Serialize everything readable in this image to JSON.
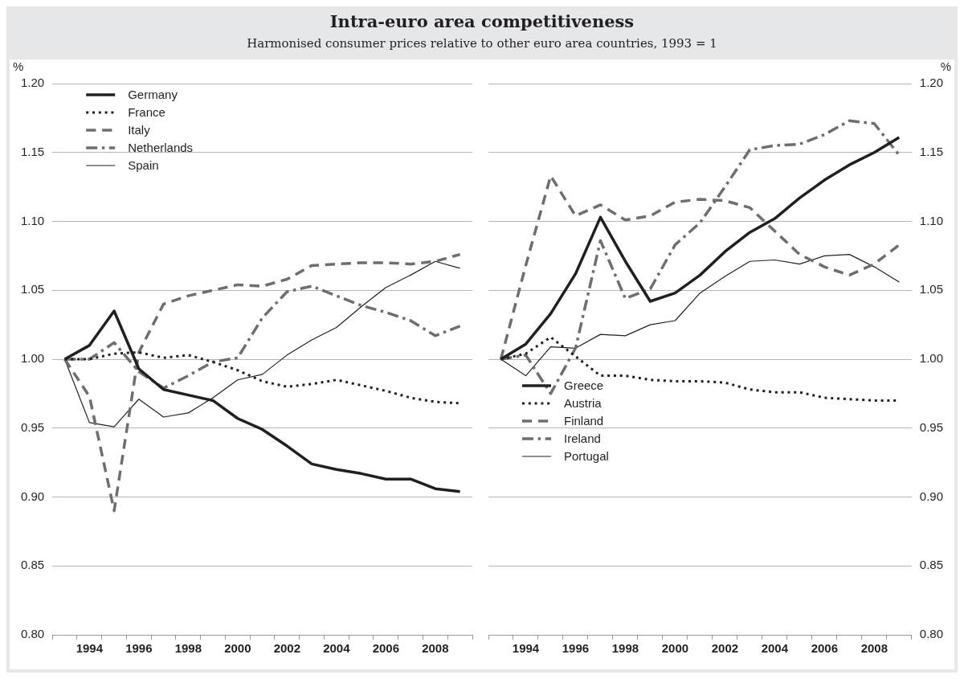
{
  "chart_data": [
    {
      "type": "line",
      "title": "Intra-euro area competitiveness",
      "subtitle": "Harmonised consumer prices relative to other euro area countries, 1993 = 1",
      "ylabel": "%",
      "x": [
        1993,
        1994,
        1995,
        1996,
        1997,
        1998,
        1999,
        2000,
        2001,
        2002,
        2003,
        2004,
        2005,
        2006,
        2007,
        2008,
        2009
      ],
      "xlim": [
        1992.5,
        2009.5
      ],
      "xticks": [
        {
          "value": 1992.5,
          "label": null
        },
        {
          "value": 1993.5,
          "label": null
        },
        1994,
        {
          "value": 1994.5,
          "label": null
        },
        {
          "value": 1995.5,
          "label": null
        },
        1996,
        {
          "value": 1996.5,
          "label": null
        },
        {
          "value": 1997.5,
          "label": null
        },
        1998,
        {
          "value": 1998.5,
          "label": null
        },
        {
          "value": 1999.5,
          "label": null
        },
        2000,
        {
          "value": 2000.5,
          "label": null
        },
        {
          "value": 2001.5,
          "label": null
        },
        2002,
        {
          "value": 2002.5,
          "label": null
        },
        {
          "value": 2003.5,
          "label": null
        },
        2004,
        {
          "value": 2004.5,
          "label": null
        },
        {
          "value": 2005.5,
          "label": null
        },
        2006,
        {
          "value": 2006.5,
          "label": null
        },
        {
          "value": 2007.5,
          "label": null
        },
        2008,
        {
          "value": 2008.5,
          "label": null
        },
        {
          "value": 2009.5,
          "label": null
        }
      ],
      "ylim": [
        0.8,
        1.2
      ],
      "yticks": [
        {
          "value": 0.8,
          "label": "0.80"
        },
        {
          "value": 0.85,
          "label": "0.85"
        },
        {
          "value": 0.9,
          "label": "0.90"
        },
        {
          "value": 0.95,
          "label": "0.95"
        },
        {
          "value": 1.0,
          "label": "1.00"
        },
        {
          "value": 1.05,
          "label": "1.05"
        },
        {
          "value": 1.1,
          "label": "1.10"
        },
        {
          "value": 1.15,
          "label": "1.15"
        },
        {
          "value": 1.2,
          "label": "1.20"
        }
      ],
      "grid": "y",
      "legend": "top left",
      "marker": "none",
      "series": [
        {
          "name": "Germany",
          "color": "#231f20",
          "line_style": "solid",
          "values": [
            1.0,
            1.01,
            1.035,
            0.993,
            0.978,
            0.974,
            0.97,
            0.957,
            0.949,
            0.937,
            0.924,
            0.92,
            0.917,
            0.913,
            0.913,
            0.906,
            0.904
          ]
        },
        {
          "name": "France",
          "color": "#231f20",
          "line_style": "dotted",
          "values": [
            1.0,
            1.0,
            1.004,
            1.005,
            1.001,
            1.003,
            0.998,
            0.992,
            0.984,
            0.98,
            0.982,
            0.985,
            0.981,
            0.977,
            0.972,
            0.969,
            0.968
          ]
        },
        {
          "name": "Italy",
          "color": "#6d6e71",
          "line_style": "dashed",
          "values": [
            1.0,
            0.973,
            0.89,
            1.005,
            1.04,
            1.046,
            1.05,
            1.054,
            1.053,
            1.058,
            1.068,
            1.069,
            1.07,
            1.07,
            1.069,
            1.071,
            1.076
          ]
        },
        {
          "name": "Netherlands",
          "color": "#6d6e71",
          "line_style": "dashdot",
          "values": [
            1.0,
            1.0,
            1.012,
            0.991,
            0.979,
            0.988,
            0.998,
            1.001,
            1.03,
            1.049,
            1.053,
            1.046,
            1.039,
            1.034,
            1.028,
            1.017,
            1.024
          ]
        },
        {
          "name": "Spain",
          "color": "#231f20",
          "line_style": "solid",
          "values": [
            1.0,
            0.954,
            0.951,
            0.971,
            0.958,
            0.961,
            0.972,
            0.985,
            0.989,
            1.003,
            1.014,
            1.023,
            1.038,
            1.052,
            1.061,
            1.071,
            1.066
          ]
        }
      ]
    },
    {
      "type": "line",
      "y2label": "%",
      "x": [
        1993,
        1994,
        1995,
        1996,
        1997,
        1998,
        1999,
        2000,
        2001,
        2002,
        2003,
        2004,
        2005,
        2006,
        2007,
        2008,
        2009
      ],
      "xlim": [
        1992.5,
        2009.5
      ],
      "xticks": [
        {
          "value": 1992.5,
          "label": null
        },
        {
          "value": 1993.5,
          "label": null
        },
        1994,
        {
          "value": 1994.5,
          "label": null
        },
        {
          "value": 1995.5,
          "label": null
        },
        1996,
        {
          "value": 1996.5,
          "label": null
        },
        {
          "value": 1997.5,
          "label": null
        },
        1998,
        {
          "value": 1998.5,
          "label": null
        },
        {
          "value": 1999.5,
          "label": null
        },
        2000,
        {
          "value": 2000.5,
          "label": null
        },
        {
          "value": 2001.5,
          "label": null
        },
        2002,
        {
          "value": 2002.5,
          "label": null
        },
        {
          "value": 2003.5,
          "label": null
        },
        2004,
        {
          "value": 2004.5,
          "label": null
        },
        {
          "value": 2005.5,
          "label": null
        },
        2006,
        {
          "value": 2006.5,
          "label": null
        },
        {
          "value": 2007.5,
          "label": null
        },
        2008,
        {
          "value": 2008.5,
          "label": null
        },
        {
          "value": 2009.5,
          "label": null
        }
      ],
      "y2lim": [
        0.8,
        1.2
      ],
      "y2ticks": [
        {
          "value": 0.8,
          "label": "0.80"
        },
        {
          "value": 0.85,
          "label": "0.85"
        },
        {
          "value": 0.9,
          "label": "0.90"
        },
        {
          "value": 0.95,
          "label": "0.95"
        },
        {
          "value": 1.0,
          "label": "1.00"
        },
        {
          "value": 1.05,
          "label": "1.05"
        },
        {
          "value": 1.1,
          "label": "1.10"
        },
        {
          "value": 1.15,
          "label": "1.15"
        },
        {
          "value": 1.2,
          "label": "1.20"
        }
      ],
      "grid": "y",
      "legend": "bottom left",
      "marker": "none",
      "series": [
        {
          "name": "Greece",
          "color": "#231f20",
          "line_style": "solid",
          "axis": "y2",
          "values": [
            1.0,
            1.011,
            1.033,
            1.062,
            1.103,
            1.071,
            1.042,
            1.048,
            1.061,
            1.078,
            1.092,
            1.102,
            1.117,
            1.13,
            1.141,
            1.15,
            1.161
          ]
        },
        {
          "name": "Austria",
          "color": "#231f20",
          "line_style": "dotted",
          "axis": "y2",
          "values": [
            1.0,
            1.004,
            1.016,
            1.002,
            0.988,
            0.988,
            0.985,
            0.984,
            0.984,
            0.983,
            0.978,
            0.976,
            0.976,
            0.972,
            0.971,
            0.97,
            0.97
          ]
        },
        {
          "name": "Finland",
          "color": "#6d6e71",
          "line_style": "dashed",
          "axis": "y2",
          "values": [
            1.0,
            1.068,
            1.133,
            1.104,
            1.112,
            1.101,
            1.104,
            1.114,
            1.116,
            1.115,
            1.11,
            1.093,
            1.076,
            1.067,
            1.061,
            1.069,
            1.083
          ]
        },
        {
          "name": "Ireland",
          "color": "#6d6e71",
          "line_style": "dashdot",
          "axis": "y2",
          "values": [
            1.0,
            1.003,
            0.975,
            1.008,
            1.086,
            1.044,
            1.051,
            1.083,
            1.099,
            1.125,
            1.152,
            1.155,
            1.156,
            1.163,
            1.173,
            1.171,
            1.148
          ]
        },
        {
          "name": "Portugal",
          "color": "#231f20",
          "line_style": "solid",
          "axis": "y2",
          "values": [
            1.0,
            0.988,
            1.009,
            1.008,
            1.018,
            1.017,
            1.025,
            1.028,
            1.048,
            1.06,
            1.071,
            1.072,
            1.069,
            1.075,
            1.076,
            1.067,
            1.056
          ]
        }
      ]
    }
  ]
}
